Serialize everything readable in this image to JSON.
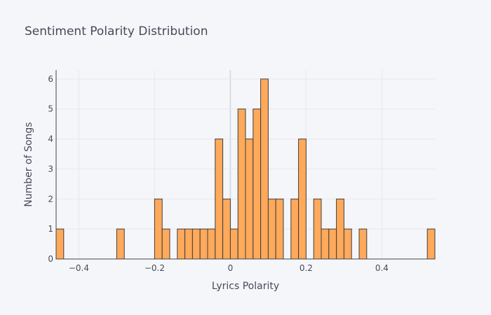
{
  "chart_data": {
    "type": "bar",
    "title": "Sentiment Polarity Distribution",
    "xlabel": "Lyrics Polarity",
    "ylabel": "Number of Songs",
    "xlim": [
      -0.46,
      0.54
    ],
    "ylim": [
      0,
      6.3
    ],
    "bin_width": 0.02,
    "x_ticks": [
      -0.4,
      -0.2,
      0,
      0.2,
      0.4
    ],
    "x_tick_labels": [
      "−0.4",
      "−0.2",
      "0",
      "0.2",
      "0.4"
    ],
    "y_ticks": [
      0,
      1,
      2,
      3,
      4,
      5,
      6
    ],
    "y_tick_labels": [
      "0",
      "1",
      "2",
      "3",
      "4",
      "5",
      "6"
    ],
    "grid": true,
    "bar_color": "#ffa95a",
    "bar_edge_color": "#3f3f3f",
    "bins": [
      {
        "x": -0.45,
        "count": 1
      },
      {
        "x": -0.29,
        "count": 1
      },
      {
        "x": -0.19,
        "count": 2
      },
      {
        "x": -0.17,
        "count": 1
      },
      {
        "x": -0.13,
        "count": 1
      },
      {
        "x": -0.11,
        "count": 1
      },
      {
        "x": -0.09,
        "count": 1
      },
      {
        "x": -0.07,
        "count": 1
      },
      {
        "x": -0.05,
        "count": 1
      },
      {
        "x": -0.03,
        "count": 4
      },
      {
        "x": -0.01,
        "count": 2
      },
      {
        "x": 0.01,
        "count": 1
      },
      {
        "x": 0.03,
        "count": 5
      },
      {
        "x": 0.05,
        "count": 4
      },
      {
        "x": 0.07,
        "count": 5
      },
      {
        "x": 0.09,
        "count": 6
      },
      {
        "x": 0.11,
        "count": 2
      },
      {
        "x": 0.13,
        "count": 2
      },
      {
        "x": 0.17,
        "count": 2
      },
      {
        "x": 0.19,
        "count": 4
      },
      {
        "x": 0.23,
        "count": 2
      },
      {
        "x": 0.25,
        "count": 1
      },
      {
        "x": 0.27,
        "count": 1
      },
      {
        "x": 0.29,
        "count": 2
      },
      {
        "x": 0.31,
        "count": 1
      },
      {
        "x": 0.35,
        "count": 1
      },
      {
        "x": 0.53,
        "count": 1
      }
    ]
  }
}
